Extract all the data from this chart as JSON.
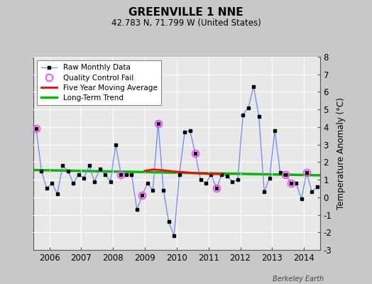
{
  "title": "GREENVILLE 1 NNE",
  "subtitle": "42.783 N, 71.799 W (United States)",
  "ylabel": "Temperature Anomaly (°C)",
  "attribution": "Berkeley Earth",
  "ylim": [
    -3,
    8
  ],
  "yticks": [
    -3,
    -2,
    -1,
    0,
    1,
    2,
    3,
    4,
    5,
    6,
    7,
    8
  ],
  "xlim": [
    2005.5,
    2014.5
  ],
  "xticks": [
    2006,
    2007,
    2008,
    2009,
    2010,
    2011,
    2012,
    2013,
    2014
  ],
  "bg_color": "#c8c8c8",
  "plot_bg": "#e8e8e8",
  "grid_color": "white",
  "raw_x": [
    2005.583,
    2005.75,
    2005.917,
    2006.083,
    2006.25,
    2006.417,
    2006.583,
    2006.75,
    2006.917,
    2007.083,
    2007.25,
    2007.417,
    2007.583,
    2007.75,
    2007.917,
    2008.083,
    2008.25,
    2008.417,
    2008.583,
    2008.75,
    2008.917,
    2009.083,
    2009.25,
    2009.417,
    2009.583,
    2009.75,
    2009.917,
    2010.083,
    2010.25,
    2010.417,
    2010.583,
    2010.75,
    2010.917,
    2011.083,
    2011.25,
    2011.417,
    2011.583,
    2011.75,
    2011.917,
    2012.083,
    2012.25,
    2012.417,
    2012.583,
    2012.75,
    2012.917,
    2013.083,
    2013.25,
    2013.417,
    2013.583,
    2013.75,
    2013.917,
    2014.083,
    2014.25,
    2014.417
  ],
  "raw_y": [
    3.9,
    1.5,
    0.5,
    0.8,
    0.2,
    1.8,
    1.5,
    0.8,
    1.3,
    1.1,
    1.8,
    0.9,
    1.6,
    1.3,
    0.9,
    3.0,
    1.3,
    1.3,
    1.3,
    -0.7,
    0.1,
    0.8,
    0.4,
    4.2,
    0.4,
    -1.4,
    -2.2,
    1.3,
    3.7,
    3.8,
    2.5,
    1.0,
    0.8,
    1.3,
    0.5,
    1.3,
    1.2,
    0.9,
    1.0,
    4.7,
    5.1,
    6.3,
    4.6,
    0.3,
    1.1,
    3.8,
    1.4,
    1.3,
    0.8,
    0.8,
    -0.1,
    1.4,
    0.3,
    0.6
  ],
  "qc_fail_x": [
    2005.583,
    2009.417,
    2008.25,
    2008.917,
    2010.583,
    2011.25,
    2013.417,
    2013.583,
    2014.083
  ],
  "qc_fail_y": [
    3.9,
    4.2,
    1.3,
    0.1,
    2.5,
    0.5,
    1.3,
    0.8,
    1.4
  ],
  "ma_x": [
    2009.0,
    2009.25,
    2009.5,
    2009.75,
    2010.0,
    2010.25,
    2010.5,
    2010.75,
    2011.0,
    2011.25,
    2011.4
  ],
  "ma_y": [
    1.5,
    1.58,
    1.55,
    1.5,
    1.45,
    1.42,
    1.38,
    1.35,
    1.33,
    1.32,
    1.32
  ],
  "trend_x": [
    2005.5,
    2014.5
  ],
  "trend_y": [
    1.55,
    1.25
  ],
  "raw_line_color": "#6688ff",
  "raw_marker_color": "#000000",
  "ma_color": "#ff0000",
  "trend_color": "#00bb00",
  "qc_color": "#ff44ff",
  "legend_raw_line": "Raw Monthly Data",
  "legend_qc": "Quality Control Fail",
  "legend_ma": "Five Year Moving Average",
  "legend_trend": "Long-Term Trend"
}
